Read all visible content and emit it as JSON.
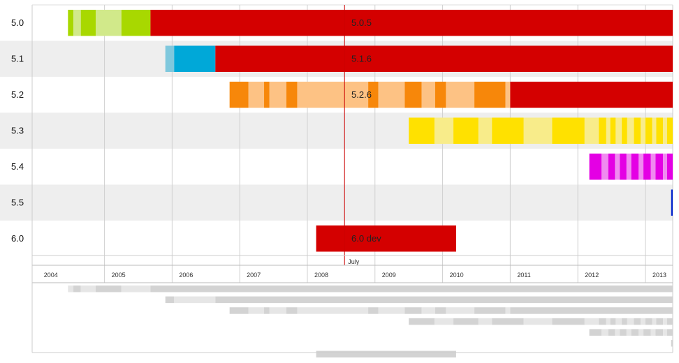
{
  "chart_data": {
    "type": "timeline",
    "title": "",
    "x_axis": {
      "unit": "year",
      "range": [
        2003.93,
        2013.43
      ],
      "ticks": [
        "2004",
        "2005",
        "2006",
        "2007",
        "2008",
        "2009",
        "2010",
        "2011",
        "2012",
        "2013"
      ],
      "marker": {
        "label": "July",
        "x": 2008.55
      }
    },
    "versions": [
      {
        "name": "5.0",
        "label": "5.0.5",
        "label_x": 2008.6,
        "color": "#d40000",
        "segments": [
          {
            "x0": 2004.46,
            "x1": 2004.54,
            "color": "#a8d800"
          },
          {
            "x0": 2004.54,
            "x1": 2004.65,
            "color": "#d1e98a"
          },
          {
            "x0": 2004.65,
            "x1": 2004.87,
            "color": "#a8d800"
          },
          {
            "x0": 2004.87,
            "x1": 2005.25,
            "color": "#d1e98a"
          },
          {
            "x0": 2005.25,
            "x1": 2005.68,
            "color": "#a8d800"
          },
          {
            "x0": 2005.68,
            "x1": 2013.43,
            "color": "#d40000"
          }
        ]
      },
      {
        "name": "5.1",
        "label": "5.1.6",
        "label_x": 2008.6,
        "color": "#d40000",
        "segments": [
          {
            "x0": 2005.9,
            "x1": 2006.03,
            "color": "#7fc8dd"
          },
          {
            "x0": 2006.03,
            "x1": 2006.64,
            "color": "#00a8d8"
          },
          {
            "x0": 2006.64,
            "x1": 2013.43,
            "color": "#d40000"
          }
        ]
      },
      {
        "name": "5.2",
        "label": "5.2.6",
        "label_x": 2008.6,
        "color": "#d40000",
        "segments": [
          {
            "x0": 2006.85,
            "x1": 2007.13,
            "color": "#f7870a"
          },
          {
            "x0": 2007.13,
            "x1": 2007.36,
            "color": "#fdc284"
          },
          {
            "x0": 2007.36,
            "x1": 2007.44,
            "color": "#f7870a"
          },
          {
            "x0": 2007.44,
            "x1": 2007.69,
            "color": "#fdc284"
          },
          {
            "x0": 2007.69,
            "x1": 2007.85,
            "color": "#f7870a"
          },
          {
            "x0": 2007.85,
            "x1": 2008.9,
            "color": "#fdc284"
          },
          {
            "x0": 2008.9,
            "x1": 2009.05,
            "color": "#f7870a"
          },
          {
            "x0": 2009.05,
            "x1": 2009.44,
            "color": "#fdc284"
          },
          {
            "x0": 2009.44,
            "x1": 2009.69,
            "color": "#f7870a"
          },
          {
            "x0": 2009.69,
            "x1": 2009.89,
            "color": "#fdc284"
          },
          {
            "x0": 2009.89,
            "x1": 2010.05,
            "color": "#f7870a"
          },
          {
            "x0": 2010.05,
            "x1": 2010.47,
            "color": "#fdc284"
          },
          {
            "x0": 2010.47,
            "x1": 2010.93,
            "color": "#f7870a"
          },
          {
            "x0": 2010.93,
            "x1": 2011.0,
            "color": "#fdc284"
          },
          {
            "x0": 2011.0,
            "x1": 2013.43,
            "color": "#d40000"
          }
        ]
      },
      {
        "name": "5.3",
        "label": "",
        "color": "#ffe100",
        "segments": [
          {
            "x0": 2009.5,
            "x1": 2009.88,
            "color": "#ffe100"
          },
          {
            "x0": 2009.88,
            "x1": 2010.16,
            "color": "#f8ec8a"
          },
          {
            "x0": 2010.16,
            "x1": 2010.53,
            "color": "#ffe100"
          },
          {
            "x0": 2010.53,
            "x1": 2010.73,
            "color": "#f8ec8a"
          },
          {
            "x0": 2010.73,
            "x1": 2011.2,
            "color": "#ffe100"
          },
          {
            "x0": 2011.2,
            "x1": 2011.62,
            "color": "#f8ec8a"
          },
          {
            "x0": 2011.62,
            "x1": 2012.1,
            "color": "#ffe100"
          },
          {
            "x0": 2012.1,
            "x1": 2012.31,
            "color": "#f8ec8a"
          },
          {
            "x0": 2012.31,
            "x1": 2012.42,
            "color": "#ffe100"
          },
          {
            "x0": 2012.42,
            "x1": 2012.48,
            "color": "#f8ec8a"
          },
          {
            "x0": 2012.48,
            "x1": 2012.56,
            "color": "#ffe100"
          },
          {
            "x0": 2012.56,
            "x1": 2012.65,
            "color": "#f8ec8a"
          },
          {
            "x0": 2012.65,
            "x1": 2012.73,
            "color": "#ffe100"
          },
          {
            "x0": 2012.73,
            "x1": 2012.83,
            "color": "#f8ec8a"
          },
          {
            "x0": 2012.83,
            "x1": 2012.93,
            "color": "#ffe100"
          },
          {
            "x0": 2012.93,
            "x1": 2013.0,
            "color": "#f8ec8a"
          },
          {
            "x0": 2013.0,
            "x1": 2013.1,
            "color": "#ffe100"
          },
          {
            "x0": 2013.1,
            "x1": 2013.16,
            "color": "#f8ec8a"
          },
          {
            "x0": 2013.16,
            "x1": 2013.26,
            "color": "#ffe100"
          },
          {
            "x0": 2013.26,
            "x1": 2013.32,
            "color": "#f8ec8a"
          },
          {
            "x0": 2013.32,
            "x1": 2013.43,
            "color": "#ffe100"
          }
        ]
      },
      {
        "name": "5.4",
        "label": "",
        "color": "#e400e4",
        "segments": [
          {
            "x0": 2012.17,
            "x1": 2012.35,
            "color": "#e400e4"
          },
          {
            "x0": 2012.35,
            "x1": 2012.45,
            "color": "#f08af0"
          },
          {
            "x0": 2012.45,
            "x1": 2012.55,
            "color": "#e400e4"
          },
          {
            "x0": 2012.55,
            "x1": 2012.62,
            "color": "#f08af0"
          },
          {
            "x0": 2012.62,
            "x1": 2012.72,
            "color": "#e400e4"
          },
          {
            "x0": 2012.72,
            "x1": 2012.79,
            "color": "#f08af0"
          },
          {
            "x0": 2012.79,
            "x1": 2012.9,
            "color": "#e400e4"
          },
          {
            "x0": 2012.9,
            "x1": 2012.97,
            "color": "#f08af0"
          },
          {
            "x0": 2012.97,
            "x1": 2013.08,
            "color": "#e400e4"
          },
          {
            "x0": 2013.08,
            "x1": 2013.15,
            "color": "#f08af0"
          },
          {
            "x0": 2013.15,
            "x1": 2013.26,
            "color": "#e400e4"
          },
          {
            "x0": 2013.26,
            "x1": 2013.32,
            "color": "#f08af0"
          },
          {
            "x0": 2013.32,
            "x1": 2013.43,
            "color": "#e400e4"
          }
        ]
      },
      {
        "name": "5.5",
        "label": "",
        "color": "#0022cc",
        "segments": [
          {
            "x0": 2013.38,
            "x1": 2013.43,
            "color": "#0022cc"
          }
        ]
      },
      {
        "name": "6.0",
        "label": "6.0 dev",
        "label_x": 2008.6,
        "color": "#d40000",
        "segments": [
          {
            "x0": 2008.13,
            "x1": 2010.2,
            "color": "#d40000"
          }
        ]
      }
    ],
    "overview": {
      "light": "#e6e6e6",
      "dark": "#d3d3d3"
    }
  }
}
